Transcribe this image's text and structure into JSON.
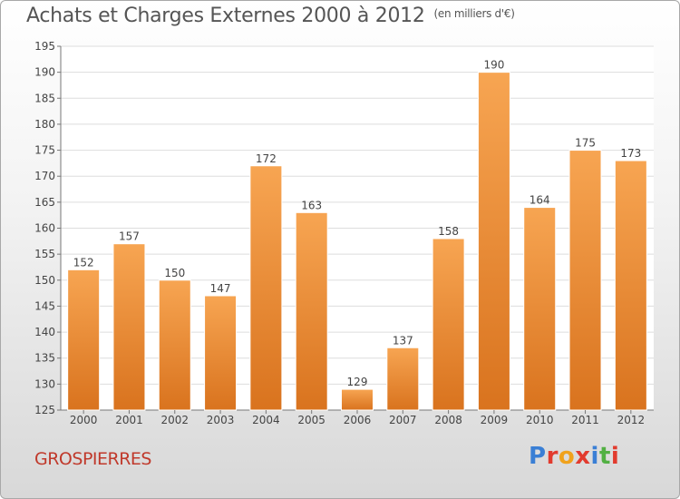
{
  "header": {
    "title": "Achats et Charges Externes 2000 à 2012",
    "unit": "(en milliers d'€)"
  },
  "footer": {
    "commune": "GROSPIERRES",
    "logo_text": "Proxiti"
  },
  "colors": {
    "bar_top": "#f7a552",
    "bar_bottom": "#d9731e",
    "commune_text": "#c0392b",
    "grid": "#dddddd",
    "logo_letters": [
      "#3a7fd5",
      "#e23b2e",
      "#f0a21c",
      "#e23b2e",
      "#3a7fd5",
      "#52b043",
      "#e23b2e"
    ]
  },
  "chart_data": {
    "type": "bar",
    "title": "Achats et Charges Externes 2000 à 2012",
    "subtitle": "(en milliers d'€)",
    "categories": [
      "2000",
      "2001",
      "2002",
      "2003",
      "2004",
      "2005",
      "2006",
      "2007",
      "2008",
      "2009",
      "2010",
      "2011",
      "2012"
    ],
    "values": [
      152,
      157,
      150,
      147,
      172,
      163,
      129,
      137,
      158,
      190,
      164,
      175,
      173
    ],
    "ylim": [
      125,
      195
    ],
    "yticks": [
      125,
      130,
      135,
      140,
      145,
      150,
      155,
      160,
      165,
      170,
      175,
      180,
      185,
      190,
      195
    ],
    "grid": true,
    "data_labels": true
  }
}
